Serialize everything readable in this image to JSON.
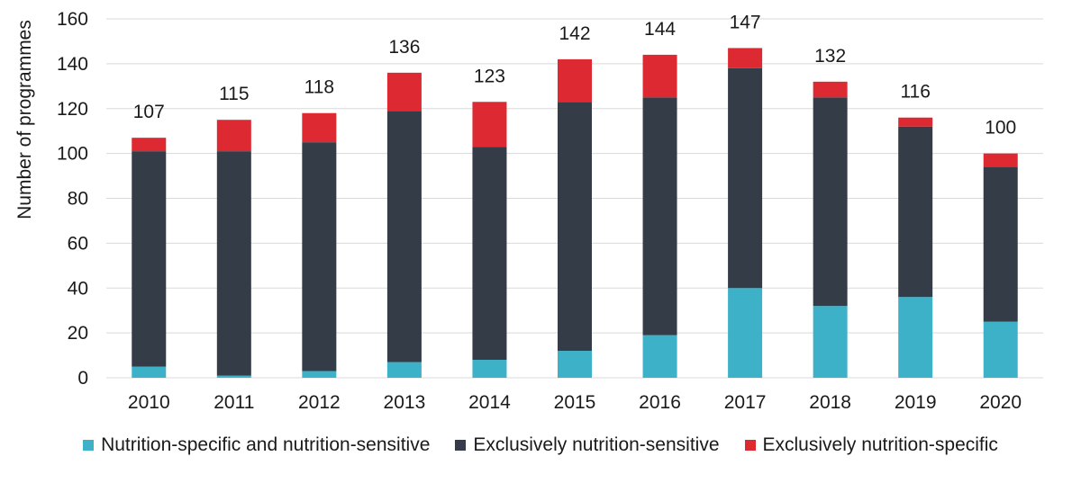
{
  "chart_data": {
    "type": "bar",
    "stacked": true,
    "categories": [
      "2010",
      "2011",
      "2012",
      "2013",
      "2014",
      "2015",
      "2016",
      "2017",
      "2018",
      "2019",
      "2020"
    ],
    "series": [
      {
        "name": "Nutrition-specific and nutrition-sensitive",
        "color": "#3CB1C8",
        "values": [
          5,
          1,
          3,
          7,
          8,
          12,
          19,
          40,
          32,
          36,
          25
        ]
      },
      {
        "name": "Exclusively nutrition-sensitive",
        "color": "#333C47",
        "values": [
          96,
          100,
          102,
          112,
          95,
          111,
          106,
          98,
          93,
          76,
          69
        ]
      },
      {
        "name": "Exclusively nutrition-specific",
        "color": "#DC2932",
        "values": [
          6,
          14,
          13,
          17,
          20,
          19,
          19,
          9,
          7,
          4,
          6
        ]
      }
    ],
    "totals": [
      107,
      115,
      118,
      136,
      123,
      142,
      144,
      147,
      132,
      116,
      100
    ],
    "ylabel": "Number of programmes",
    "xlabel": "",
    "ylim": [
      0,
      160
    ],
    "yticks": [
      0,
      20,
      40,
      60,
      80,
      100,
      120,
      140,
      160
    ],
    "grid": true,
    "legend_position": "bottom"
  }
}
